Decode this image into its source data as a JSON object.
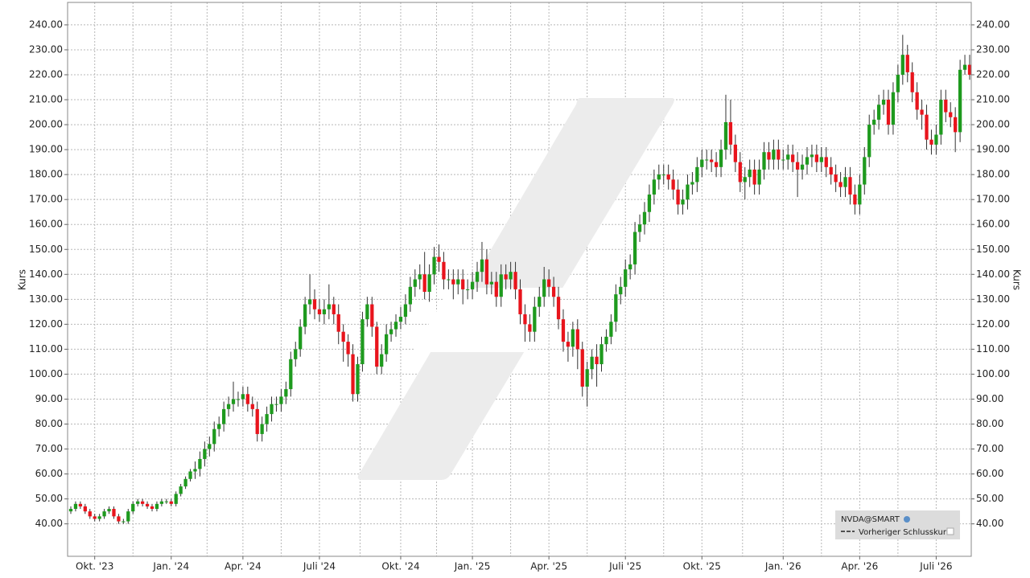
{
  "chart_data": {
    "type": "candlestick",
    "ylabel": "Kurs",
    "legend": {
      "title": "NVDA@SMART",
      "items": [
        "Vorheriger Schlusskurs"
      ]
    },
    "up_color": "#1e9a1e",
    "down_color": "#e8141c",
    "grid": true,
    "ylim": [
      27,
      249
    ],
    "yticks": [
      {
        "value": 40,
        "label": "40.00"
      },
      {
        "value": 50,
        "label": "50.00"
      },
      {
        "value": 60,
        "label": "60.00"
      },
      {
        "value": 70,
        "label": "70.00"
      },
      {
        "value": 80,
        "label": "80.00"
      },
      {
        "value": 90,
        "label": "90.00"
      },
      {
        "value": 100,
        "label": "100.00"
      },
      {
        "value": 110,
        "label": "110.00"
      },
      {
        "value": 120,
        "label": "120.00"
      },
      {
        "value": 130,
        "label": "130.00"
      },
      {
        "value": 140,
        "label": "140.00"
      },
      {
        "value": 150,
        "label": "150.00"
      },
      {
        "value": 160,
        "label": "160.00"
      },
      {
        "value": 170,
        "label": "170.00"
      },
      {
        "value": 180,
        "label": "180.00"
      },
      {
        "value": 190,
        "label": "190.00"
      },
      {
        "value": 200,
        "label": "200.00"
      },
      {
        "value": 210,
        "label": "210.00"
      },
      {
        "value": 220,
        "label": "220.00"
      },
      {
        "value": 230,
        "label": "230.00"
      },
      {
        "value": 240,
        "label": "240.00"
      }
    ],
    "categories": [
      null,
      null,
      null,
      null,
      null,
      "Okt. '23",
      null,
      null,
      null,
      null,
      null,
      null,
      null,
      null,
      null,
      null,
      null,
      null,
      null,
      null,
      null,
      "Jan. '24",
      null,
      null,
      null,
      null,
      null,
      null,
      null,
      null,
      null,
      null,
      null,
      null,
      null,
      null,
      "Apr. '24",
      null,
      null,
      null,
      null,
      null,
      null,
      null,
      null,
      null,
      null,
      null,
      null,
      null,
      null,
      null,
      "Juli '24",
      null,
      null,
      null,
      null,
      null,
      null,
      null,
      null,
      null,
      null,
      null,
      null,
      null,
      null,
      null,
      null,
      "Okt. '24",
      null,
      null,
      null,
      null,
      null,
      null,
      null,
      null,
      null,
      null,
      null,
      null,
      null,
      null,
      "Jan. '25",
      null,
      null,
      null,
      null,
      null,
      null,
      null,
      null,
      null,
      null,
      null,
      null,
      null,
      null,
      null,
      "Apr. '25",
      null,
      null,
      null,
      null,
      null,
      null,
      null,
      null,
      null,
      null,
      null,
      null,
      null,
      null,
      null,
      "Juli '25",
      null,
      null,
      null,
      null,
      null,
      null,
      null,
      null,
      null,
      null,
      null,
      null,
      null,
      null,
      null,
      "Okt. '25",
      null,
      null,
      null,
      null,
      null,
      null,
      null,
      null,
      null,
      null,
      null,
      null,
      null,
      null,
      null,
      null,
      "Jan. '26",
      null,
      null,
      null,
      null,
      null,
      null,
      null,
      null,
      null,
      null,
      null,
      null,
      null,
      null,
      null,
      "Apr. '26",
      null,
      null,
      null,
      null,
      null,
      null,
      null,
      null,
      null,
      null,
      null,
      null,
      null,
      null,
      null,
      "Juli '26",
      null,
      null,
      null,
      null,
      null,
      null,
      null
    ],
    "open": [
      45,
      46,
      48,
      47,
      45,
      43,
      42,
      43,
      45,
      46,
      43,
      41,
      41,
      45,
      48,
      49,
      48,
      47,
      46,
      48,
      49,
      49,
      48,
      52,
      55,
      58,
      61,
      62,
      66,
      70,
      72,
      78,
      80,
      86,
      88,
      90,
      90,
      92,
      88,
      86,
      76,
      80,
      84,
      88,
      88,
      91,
      94,
      106,
      110,
      119,
      128,
      130,
      126,
      124,
      126,
      128,
      124,
      117,
      113,
      108,
      92,
      104,
      122,
      128,
      119,
      103,
      108,
      116,
      118,
      121,
      123,
      128,
      135,
      138,
      140,
      133,
      140,
      147,
      145,
      138,
      138,
      136,
      138,
      134,
      134,
      137,
      141,
      146,
      136,
      137,
      131,
      140,
      138,
      141,
      134,
      124,
      120,
      117,
      127,
      131,
      138,
      135,
      131,
      122,
      113,
      111,
      118,
      110,
      95,
      102,
      107,
      104,
      112,
      115,
      121,
      132,
      135,
      142,
      144,
      157,
      160,
      165,
      172,
      178,
      180,
      180,
      178,
      174,
      168,
      170,
      176,
      177,
      183,
      186,
      186,
      185,
      183,
      190,
      201,
      192,
      185,
      177,
      179,
      182,
      176,
      182,
      189,
      186,
      190,
      186,
      186,
      188,
      185,
      182,
      184,
      187,
      188,
      185,
      187,
      183,
      180,
      177,
      175,
      179,
      172,
      168,
      176,
      187,
      200,
      202,
      208,
      210,
      200,
      213,
      220,
      228,
      221,
      213,
      206,
      204,
      194,
      192,
      196,
      210,
      205,
      203,
      197,
      222,
      224
    ],
    "high": [
      47,
      49,
      49,
      48,
      46,
      44,
      44,
      46,
      47,
      47,
      44,
      42,
      46,
      49,
      50,
      50,
      49,
      48,
      49,
      50,
      50,
      50,
      53,
      56,
      59,
      62,
      65,
      69,
      73,
      75,
      81,
      83,
      89,
      91,
      97,
      93,
      95,
      95,
      91,
      89,
      83,
      87,
      91,
      91,
      94,
      97,
      109,
      113,
      122,
      131,
      140,
      134,
      130,
      130,
      136,
      131,
      128,
      120,
      116,
      112,
      107,
      125,
      131,
      131,
      121,
      112,
      120,
      121,
      124,
      127,
      132,
      139,
      142,
      144,
      149,
      144,
      151,
      152,
      149,
      142,
      142,
      142,
      142,
      138,
      141,
      145,
      153,
      150,
      141,
      141,
      144,
      144,
      145,
      145,
      138,
      128,
      124,
      131,
      135,
      143,
      142,
      139,
      135,
      126,
      117,
      121,
      122,
      113,
      105,
      110,
      112,
      115,
      118,
      124,
      136,
      139,
      146,
      148,
      161,
      164,
      169,
      176,
      182,
      184,
      184,
      184,
      182,
      178,
      174,
      180,
      181,
      187,
      190,
      190,
      190,
      189,
      194,
      212,
      210,
      196,
      189,
      183,
      186,
      186,
      186,
      193,
      193,
      194,
      194,
      190,
      192,
      192,
      189,
      188,
      191,
      192,
      192,
      191,
      191,
      187,
      184,
      181,
      183,
      183,
      176,
      180,
      191,
      204,
      206,
      212,
      214,
      214,
      217,
      224,
      236,
      232,
      225,
      217,
      210,
      208,
      198,
      200,
      214,
      214,
      209,
      207,
      226,
      228,
      228
    ],
    "low": [
      44,
      45,
      46,
      44,
      42,
      41,
      41,
      42,
      44,
      42,
      40,
      40,
      40,
      44,
      47,
      47,
      46,
      45,
      45,
      47,
      48,
      47,
      47,
      51,
      54,
      57,
      58,
      59,
      63,
      67,
      69,
      75,
      77,
      83,
      85,
      87,
      87,
      85,
      83,
      73,
      73,
      77,
      81,
      85,
      85,
      88,
      91,
      103,
      107,
      116,
      124,
      122,
      121,
      120,
      122,
      120,
      112,
      105,
      103,
      89,
      89,
      101,
      119,
      115,
      100,
      100,
      105,
      113,
      115,
      118,
      120,
      125,
      131,
      134,
      130,
      129,
      136,
      141,
      134,
      134,
      130,
      132,
      128,
      130,
      130,
      133,
      137,
      132,
      132,
      127,
      127,
      134,
      134,
      130,
      120,
      113,
      113,
      113,
      123,
      127,
      131,
      127,
      118,
      109,
      105,
      107,
      102,
      91,
      87,
      98,
      95,
      101,
      109,
      112,
      117,
      128,
      131,
      138,
      140,
      153,
      156,
      161,
      168,
      174,
      176,
      174,
      170,
      164,
      164,
      166,
      172,
      173,
      179,
      182,
      181,
      179,
      179,
      186,
      188,
      181,
      173,
      170,
      175,
      172,
      172,
      178,
      182,
      182,
      182,
      182,
      182,
      181,
      171,
      178,
      180,
      183,
      181,
      181,
      179,
      176,
      173,
      171,
      171,
      168,
      164,
      164,
      172,
      183,
      196,
      198,
      204,
      196,
      196,
      209,
      216,
      217,
      209,
      202,
      198,
      190,
      188,
      188,
      192,
      201,
      199,
      189,
      193,
      220,
      218
    ],
    "close": [
      46,
      48,
      47,
      45,
      43,
      42,
      43,
      45,
      46,
      43,
      41,
      41,
      45,
      48,
      49,
      48,
      47,
      46,
      48,
      49,
      49,
      48,
      52,
      55,
      58,
      61,
      62,
      66,
      70,
      72,
      78,
      80,
      86,
      88,
      90,
      90,
      92,
      88,
      86,
      76,
      80,
      84,
      88,
      88,
      91,
      94,
      106,
      110,
      119,
      128,
      130,
      126,
      124,
      126,
      128,
      124,
      117,
      113,
      108,
      92,
      104,
      122,
      128,
      119,
      103,
      108,
      116,
      118,
      121,
      123,
      128,
      135,
      138,
      140,
      133,
      140,
      147,
      145,
      138,
      138,
      136,
      138,
      134,
      134,
      137,
      141,
      146,
      136,
      137,
      131,
      140,
      138,
      141,
      134,
      124,
      120,
      117,
      127,
      131,
      138,
      135,
      131,
      122,
      113,
      111,
      118,
      110,
      95,
      102,
      107,
      104,
      112,
      115,
      121,
      132,
      135,
      142,
      144,
      157,
      160,
      165,
      172,
      178,
      180,
      180,
      178,
      174,
      168,
      170,
      176,
      177,
      183,
      186,
      186,
      185,
      183,
      190,
      201,
      192,
      185,
      177,
      179,
      182,
      176,
      182,
      189,
      186,
      190,
      186,
      186,
      188,
      185,
      182,
      184,
      187,
      188,
      185,
      187,
      183,
      180,
      177,
      175,
      179,
      172,
      168,
      176,
      187,
      200,
      202,
      208,
      210,
      200,
      213,
      220,
      228,
      221,
      213,
      206,
      204,
      194,
      192,
      196,
      210,
      205,
      203,
      197,
      222,
      224,
      220
    ]
  }
}
